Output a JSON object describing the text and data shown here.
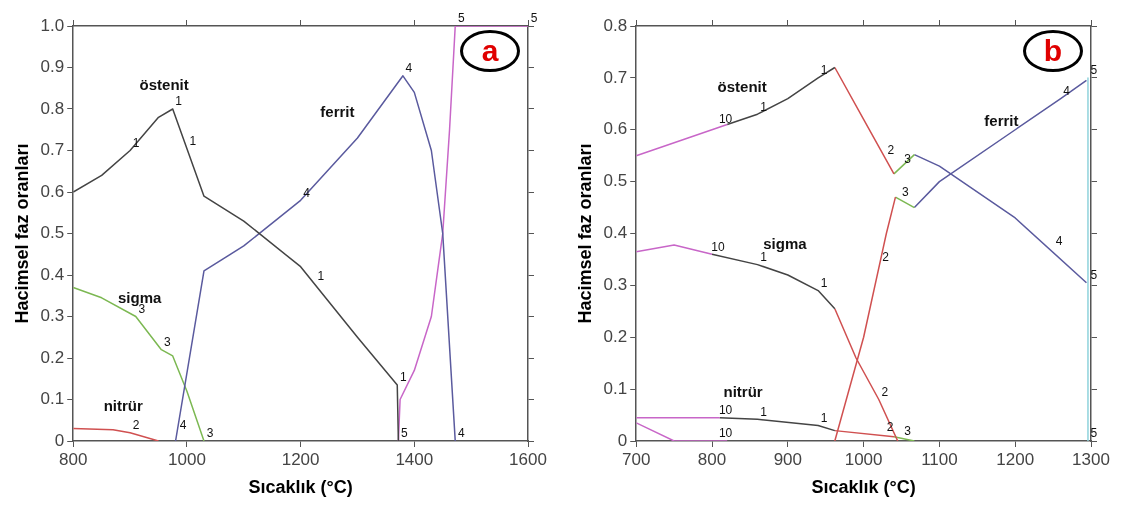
{
  "chart_data": [
    {
      "type": "line",
      "xlabel": "Sıcaklık (°C)",
      "ylabel": "Hacimsel faz oranları",
      "xlim": [
        800,
        1600
      ],
      "xticks": [
        800,
        1000,
        1200,
        1400,
        1600
      ],
      "ylim": [
        0,
        1.0
      ],
      "yticks": [
        0,
        0.1,
        0.2,
        0.3,
        0.4,
        0.5,
        0.6,
        0.7,
        0.8,
        0.9,
        {
          "value": 1.0,
          "label": "1.0"
        }
      ],
      "grid": false,
      "legend": false,
      "series": [
        {
          "color": "#444444",
          "x": [
            800,
            850,
            900,
            950,
            975,
            1030,
            1100,
            1200,
            1300,
            1370,
            1372
          ],
          "values": [
            0.6,
            0.64,
            0.7,
            0.78,
            0.8,
            0.59,
            0.53,
            0.42,
            0.25,
            0.135,
            0
          ]
        },
        {
          "color": "#5a5a9e",
          "x": [
            980,
            1030,
            1100,
            1200,
            1300,
            1380,
            1400,
            1430,
            1450,
            1472
          ],
          "values": [
            0,
            0.41,
            0.47,
            0.58,
            0.73,
            0.88,
            0.84,
            0.7,
            0.5,
            0
          ]
        },
        {
          "color": "#7cb852",
          "x": [
            800,
            850,
            910,
            955,
            975,
            1000,
            1030
          ],
          "values": [
            0.37,
            0.345,
            0.3,
            0.22,
            0.205,
            0.12,
            0
          ]
        },
        {
          "color": "#d05050",
          "x": [
            800,
            870,
            900,
            950
          ],
          "values": [
            0.03,
            0.027,
            0.02,
            0
          ]
        },
        {
          "color": "#c866c8",
          "x": [
            1372,
            1375,
            1400,
            1430,
            1450,
            1462,
            1472,
            1600
          ],
          "values": [
            0,
            0.1,
            0.17,
            0.3,
            0.5,
            0.75,
            1.0,
            1.0
          ]
        }
      ],
      "annotations": [
        "a",
        "östenit",
        "ferrit",
        "sigma",
        "nitrür",
        {
          "text": "1",
          "x": 900,
          "y": 0.7
        },
        {
          "text": "1",
          "x": 975,
          "y": 0.8
        },
        {
          "text": "1",
          "x": 1000,
          "y": 0.705
        },
        {
          "text": "1",
          "x": 1225,
          "y": 0.378
        },
        {
          "text": "1",
          "x": 1370,
          "y": 0.135
        },
        {
          "text": "4",
          "x": 1200,
          "y": 0.58
        },
        {
          "text": "4",
          "x": 1380,
          "y": 0.88
        },
        {
          "text": "4",
          "x": 982.5,
          "y": 0.02
        },
        {
          "text": "4",
          "x": 1472,
          "y": 0
        },
        {
          "text": "3",
          "x": 910,
          "y": 0.3
        },
        {
          "text": "3",
          "x": 955,
          "y": 0.22
        },
        {
          "text": "3",
          "x": 1030,
          "y": 0
        },
        {
          "text": "2",
          "x": 900,
          "y": 0.02
        },
        {
          "text": "5",
          "x": 1372,
          "y": 0
        },
        {
          "text": "5",
          "x": 1472,
          "y": 1.0
        },
        {
          "text": "5",
          "x": 1600,
          "y": 1.0
        }
      ]
    },
    {
      "type": "line",
      "xlabel": "Sıcaklık (°C)",
      "ylabel": "Hacimsel faz oranları",
      "xlim": [
        700,
        1300
      ],
      "xticks": [
        700,
        800,
        900,
        1000,
        1100,
        1200,
        1300
      ],
      "ylim": [
        0,
        0.8
      ],
      "yticks": [
        0,
        0.1,
        0.2,
        0.3,
        0.4,
        0.5,
        0.6,
        0.7,
        0.8
      ],
      "grid": false,
      "legend": false,
      "series": [
        {
          "color": "#c866c8",
          "x": [
            700,
            750,
            820
          ],
          "values": [
            0.55,
            0.575,
            0.61
          ]
        },
        {
          "color": "#444444",
          "x": [
            820,
            860,
            900,
            940,
            962
          ],
          "values": [
            0.61,
            0.63,
            0.66,
            0.7,
            0.72
          ]
        },
        {
          "color": "#d05050",
          "x": [
            962,
            1000,
            1040
          ],
          "values": [
            0.72,
            0.62,
            0.515
          ]
        },
        {
          "color": "#7cb852",
          "x": [
            1040,
            1067
          ],
          "values": [
            0.515,
            0.552
          ]
        },
        {
          "color": "#5a5a9e",
          "x": [
            1067,
            1100,
            1200,
            1294
          ],
          "values": [
            0.552,
            0.53,
            0.43,
            0.305
          ]
        },
        {
          "color": "#d05050",
          "x": [
            962,
            1000,
            1030,
            1042
          ],
          "values": [
            0,
            0.2,
            0.4,
            0.47
          ]
        },
        {
          "color": "#7cb852",
          "x": [
            1042,
            1067
          ],
          "values": [
            0.47,
            0.45
          ]
        },
        {
          "color": "#5a5a9e",
          "x": [
            1067,
            1100,
            1200,
            1260,
            1294
          ],
          "values": [
            0.45,
            0.5,
            0.6,
            0.66,
            0.695
          ]
        },
        {
          "color": "#c866c8",
          "x": [
            700,
            750,
            800
          ],
          "values": [
            0.365,
            0.378,
            0.36
          ]
        },
        {
          "color": "#444444",
          "x": [
            800,
            860,
            900,
            940,
            962
          ],
          "values": [
            0.36,
            0.34,
            0.32,
            0.29,
            0.255
          ]
        },
        {
          "color": "#d05050",
          "x": [
            962,
            990,
            1020,
            1045
          ],
          "values": [
            0.255,
            0.16,
            0.08,
            0
          ]
        },
        {
          "color": "#c866c8",
          "x": [
            700,
            810
          ],
          "values": [
            0.045,
            0.045
          ]
        },
        {
          "color": "#444444",
          "x": [
            810,
            860,
            940,
            962
          ],
          "values": [
            0.045,
            0.042,
            0.03,
            0.02
          ]
        },
        {
          "color": "#d05050",
          "x": [
            962,
            1040
          ],
          "values": [
            0.02,
            0.008
          ]
        },
        {
          "color": "#7cb852",
          "x": [
            1040,
            1067
          ],
          "values": [
            0.008,
            0
          ]
        },
        {
          "color": "#c866c8",
          "x": [
            700,
            750,
            820
          ],
          "values": [
            0.035,
            0,
            0
          ]
        },
        {
          "color": "#8fd3dc",
          "x": [
            1296,
            1296
          ],
          "values": [
            0.7,
            0
          ]
        }
      ],
      "annotations": [
        "b",
        "östenit",
        "ferrit",
        "sigma",
        "nitrür",
        {
          "text": "10",
          "x": 810,
          "y": 0.605
        },
        {
          "text": "10",
          "x": 800,
          "y": 0.36
        },
        {
          "text": "10",
          "x": 810,
          "y": 0.045
        },
        {
          "text": "10",
          "x": 810,
          "y": 0
        },
        {
          "text": "1",
          "x": 860,
          "y": 0.63
        },
        {
          "text": "1",
          "x": 940,
          "y": 0.7
        },
        {
          "text": "1",
          "x": 860,
          "y": 0.34
        },
        {
          "text": "1",
          "x": 940,
          "y": 0.29
        },
        {
          "text": "1",
          "x": 860,
          "y": 0.042
        },
        {
          "text": "1",
          "x": 940,
          "y": 0.03
        },
        {
          "text": "2",
          "x": 1028,
          "y": 0.546
        },
        {
          "text": "2",
          "x": 1021,
          "y": 0.34
        },
        {
          "text": "2",
          "x": 1020,
          "y": 0.08
        },
        {
          "text": "2",
          "x": 1027,
          "y": 0.012
        },
        {
          "text": "3",
          "x": 1050,
          "y": 0.529
        },
        {
          "text": "3",
          "x": 1047,
          "y": 0.466
        },
        {
          "text": "3",
          "x": 1050,
          "y": 0.005
        },
        {
          "text": "4",
          "x": 1260,
          "y": 0.66
        },
        {
          "text": "4",
          "x": 1250,
          "y": 0.37
        },
        {
          "text": "5",
          "x": 1296,
          "y": 0.7
        },
        {
          "text": "5",
          "x": 1296,
          "y": 0.305
        },
        {
          "text": "5",
          "x": 1296,
          "y": 0
        }
      ]
    }
  ]
}
